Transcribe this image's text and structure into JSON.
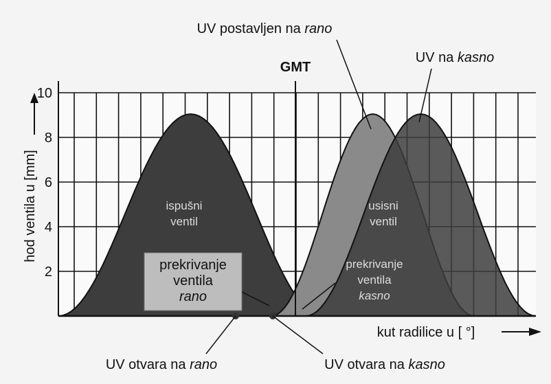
{
  "callout_early": {
    "text": "UV postavljen na ",
    "emphasis": "rano"
  },
  "callout_late": {
    "text": "UV na ",
    "emphasis": "kasno"
  },
  "gmt": "GMT",
  "y_axis": {
    "label": "hod ventila u [mm]",
    "lim": [
      0,
      10
    ],
    "ticks": [
      2,
      4,
      6,
      8,
      10
    ]
  },
  "x_axis": {
    "label": "kut radilice u [ °]"
  },
  "exhaust_label": [
    "ispušni",
    "ventil"
  ],
  "intake_label": [
    "usisni",
    "ventil"
  ],
  "overlap_early": [
    "prekrivanje",
    "ventila",
    "rano"
  ],
  "overlap_late": [
    "prekrivanje",
    "ventila",
    "kasno"
  ],
  "open_early": {
    "text": "UV otvara na ",
    "emphasis": "rano"
  },
  "open_late": {
    "text": "UV otvara na ",
    "emphasis": "kasno"
  }
}
